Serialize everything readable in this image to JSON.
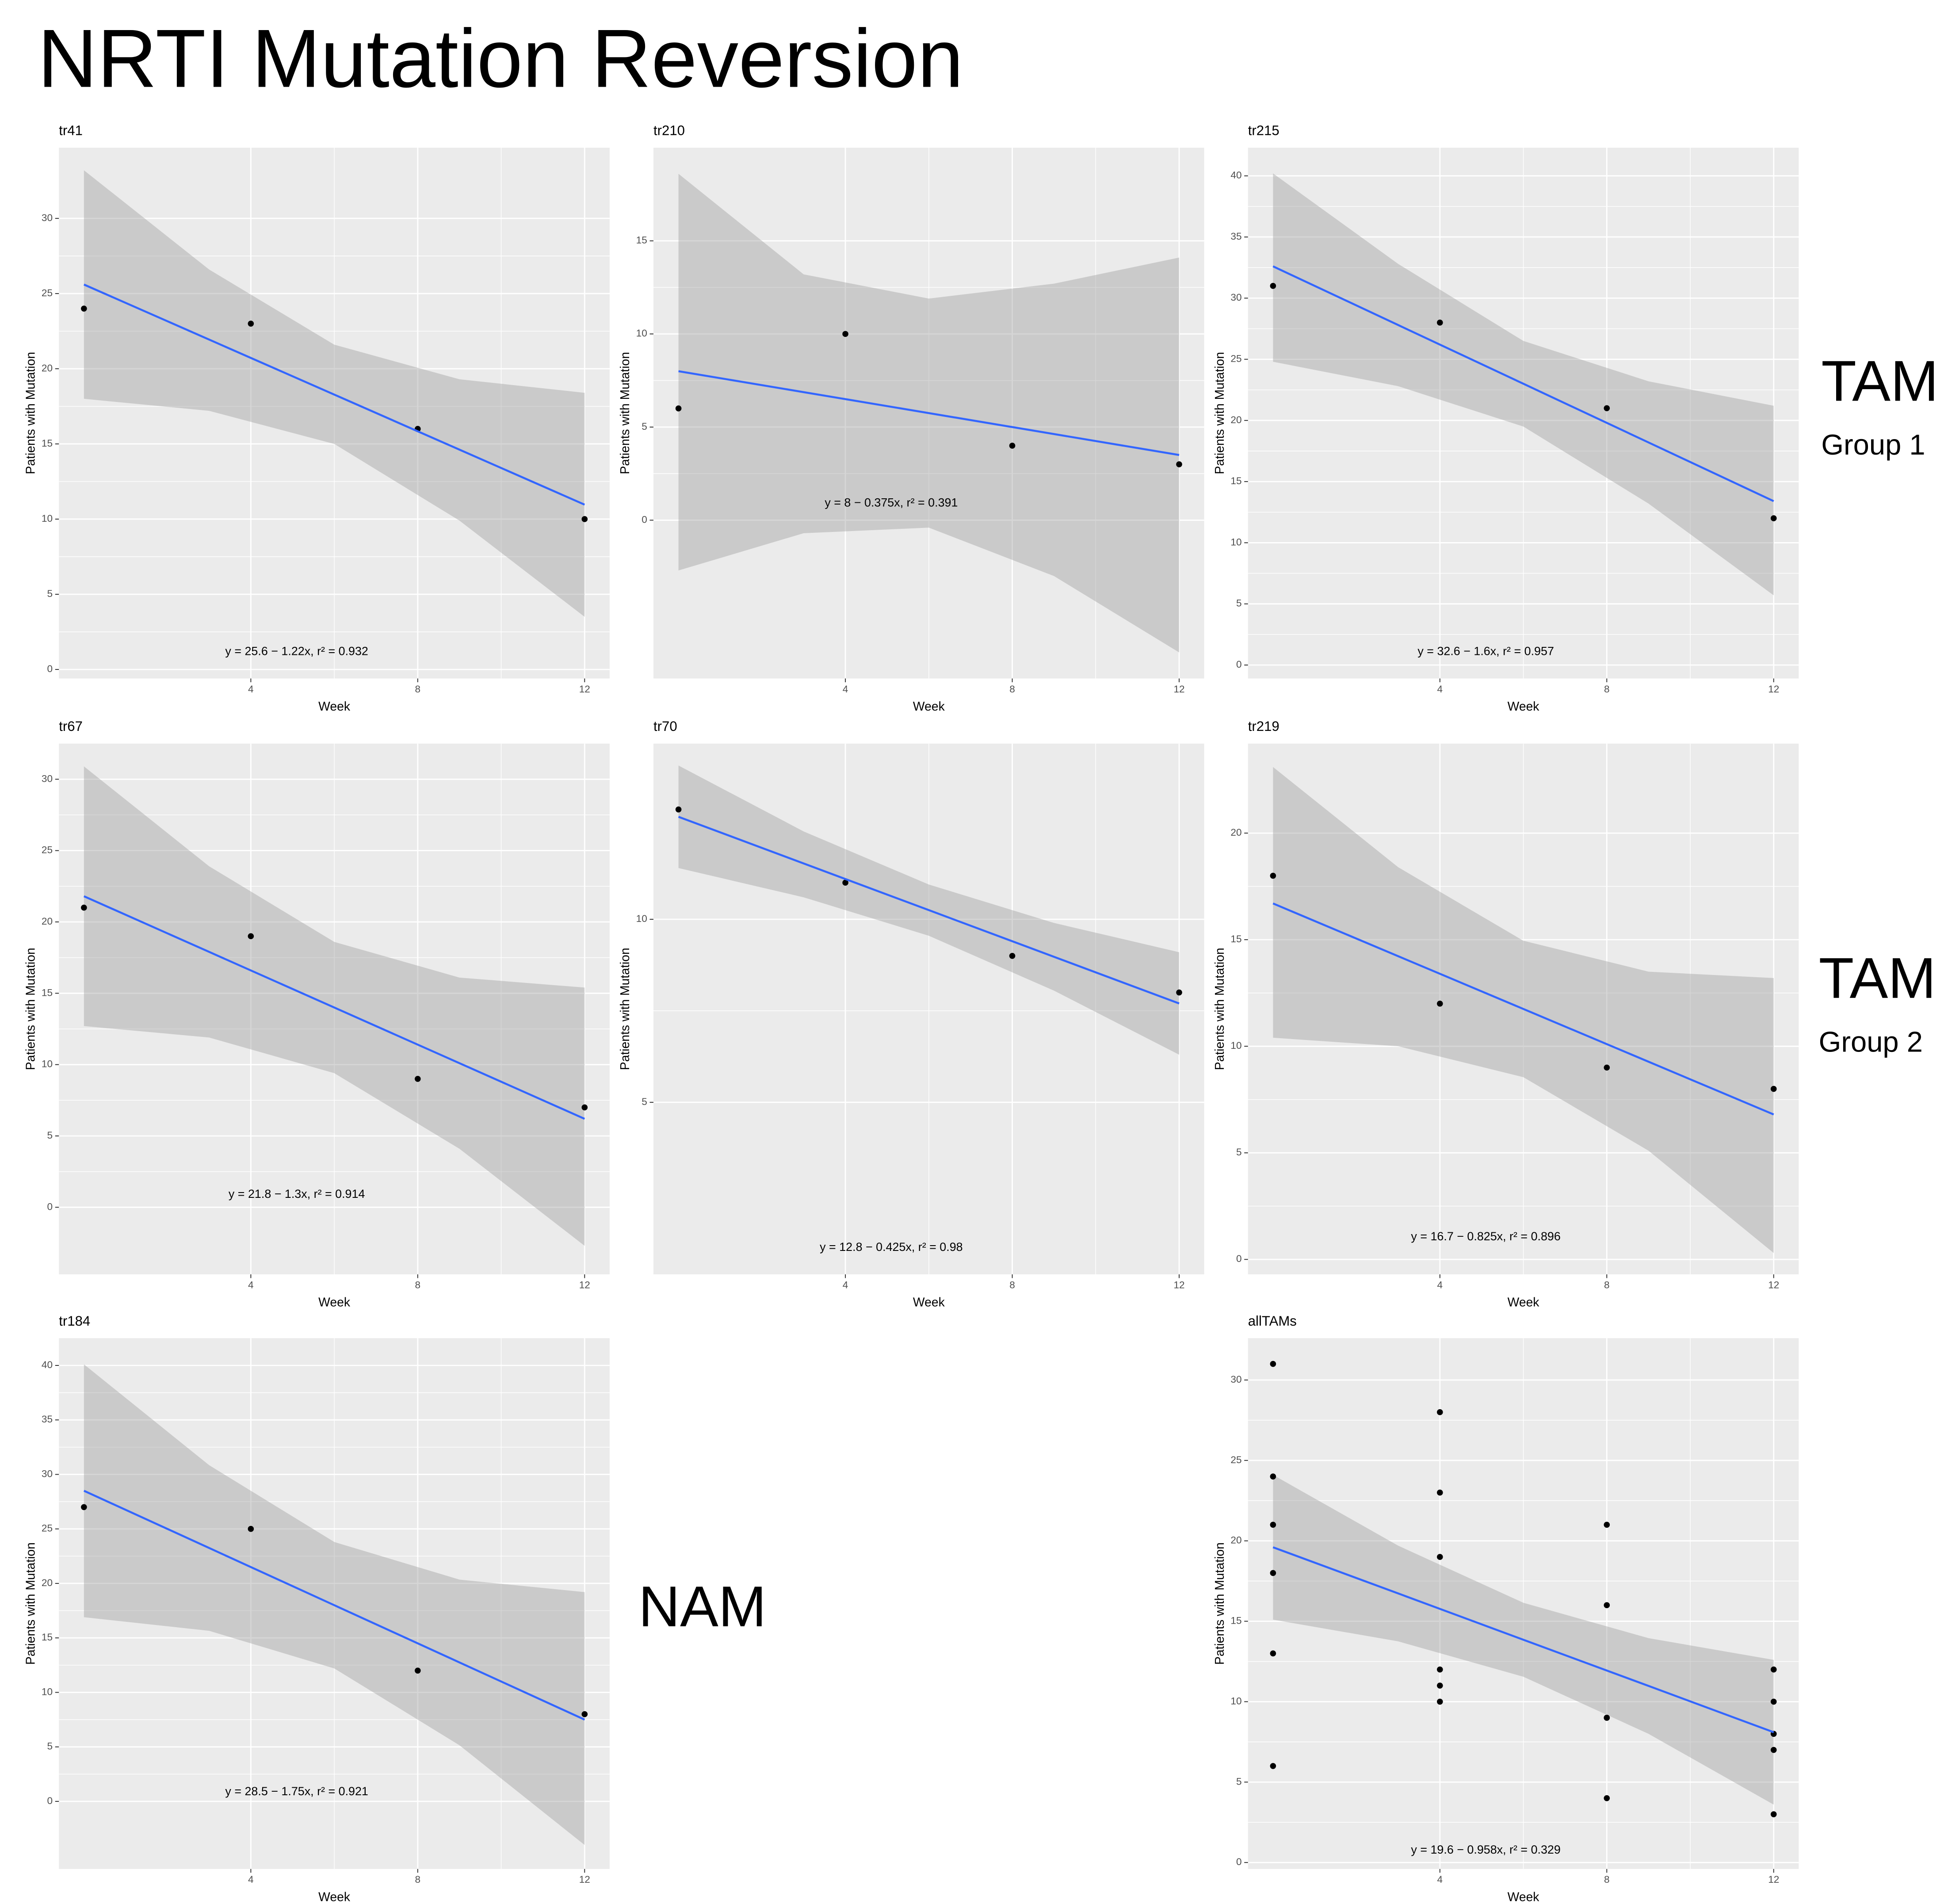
{
  "title": "NRTI Mutation Reversion",
  "group_labels": [
    {
      "title": "TAM",
      "subtitle": "Group 1"
    },
    {
      "title": "TAM",
      "subtitle": "Group 2"
    },
    {
      "title": "NAM"
    }
  ],
  "chart_data": [
    {
      "type": "scatter",
      "title": "tr41",
      "xlabel": "Week",
      "ylabel": "Patients with Mutation",
      "x": [
        0,
        4,
        8,
        12
      ],
      "values": [
        24,
        23,
        16,
        10
      ],
      "point_color": "#000000",
      "xlim": [
        -0.6,
        12.6
      ],
      "ylim": [
        -0.6,
        34.7
      ],
      "xticks": [
        4,
        8,
        12
      ],
      "yticks": [
        0,
        5,
        10,
        15,
        20,
        25,
        30
      ],
      "grid": true,
      "fit": {
        "x": [
          0,
          3,
          6,
          9,
          12
        ],
        "values": [
          25.6,
          21.94,
          18.28,
          14.62,
          10.96
        ],
        "upper": [
          33.2,
          26.6,
          21.6,
          19.3,
          18.4
        ],
        "lower": [
          18.0,
          17.2,
          15.0,
          9.9,
          3.5
        ],
        "color": "#3366ff",
        "band_color": "#999999"
      },
      "annotation": "y = 25.6 − 1.22x,  r² = 0.932"
    },
    {
      "type": "scatter",
      "title": "tr210",
      "xlabel": "Week",
      "ylabel": "Patients with Mutation",
      "x": [
        0,
        4,
        8,
        12
      ],
      "values": [
        6,
        10,
        4,
        3
      ],
      "point_color": "#000000",
      "xlim": [
        -0.6,
        12.6
      ],
      "ylim": [
        -8.5,
        20
      ],
      "xticks": [
        4,
        8,
        12
      ],
      "yticks": [
        0,
        5,
        10,
        15
      ],
      "grid": true,
      "fit": {
        "x": [
          0,
          3,
          6,
          9,
          12
        ],
        "values": [
          8,
          6.875,
          5.75,
          4.625,
          3.5
        ],
        "upper": [
          18.6,
          13.2,
          11.9,
          12.7,
          14.1
        ],
        "lower": [
          -2.7,
          -0.7,
          -0.4,
          -3.0,
          -7.1
        ],
        "color": "#3366ff",
        "band_color": "#999999"
      },
      "annotation": "y = 8 − 0.375x,  r² = 0.391"
    },
    {
      "type": "scatter",
      "title": "tr215",
      "xlabel": "Week",
      "ylabel": "Patients with Mutation",
      "x": [
        0,
        4,
        8,
        12
      ],
      "values": [
        31,
        28,
        21,
        12
      ],
      "point_color": "#000000",
      "xlim": [
        -0.6,
        12.6
      ],
      "ylim": [
        -1.1,
        42.3
      ],
      "xticks": [
        4,
        8,
        12
      ],
      "yticks": [
        0,
        5,
        10,
        15,
        20,
        25,
        30,
        35,
        40
      ],
      "grid": true,
      "fit": {
        "x": [
          0,
          3,
          6,
          9,
          12
        ],
        "values": [
          32.6,
          27.8,
          23.0,
          18.2,
          13.4
        ],
        "upper": [
          40.2,
          32.8,
          26.5,
          23.2,
          21.2
        ],
        "lower": [
          24.8,
          22.8,
          19.5,
          13.2,
          5.7
        ],
        "color": "#3366ff",
        "band_color": "#999999"
      },
      "annotation": "y = 32.6 − 1.6x,  r² = 0.957"
    },
    {
      "type": "scatter",
      "title": "tr67",
      "xlabel": "Week",
      "ylabel": "Patients with Mutation",
      "x": [
        0,
        4,
        8,
        12
      ],
      "values": [
        21,
        19,
        9,
        7
      ],
      "point_color": "#000000",
      "xlim": [
        -0.6,
        12.6
      ],
      "ylim": [
        -4.7,
        32.5
      ],
      "xticks": [
        4,
        8,
        12
      ],
      "yticks": [
        0,
        5,
        10,
        15,
        20,
        25,
        30
      ],
      "grid": true,
      "fit": {
        "x": [
          0,
          3,
          6,
          9,
          12
        ],
        "values": [
          21.8,
          17.9,
          14.0,
          10.1,
          6.2
        ],
        "upper": [
          30.9,
          23.9,
          18.6,
          16.1,
          15.4
        ],
        "lower": [
          12.7,
          11.9,
          9.4,
          4.1,
          -2.7
        ],
        "color": "#3366ff",
        "band_color": "#999999"
      },
      "annotation": "y = 21.8 − 1.3x,  r² = 0.914"
    },
    {
      "type": "scatter",
      "title": "tr70",
      "xlabel": "Week",
      "ylabel": "Patients with Mutation",
      "x": [
        0,
        4,
        8,
        12
      ],
      "values": [
        13,
        11,
        9,
        8
      ],
      "point_color": "#000000",
      "xlim": [
        -0.6,
        12.6
      ],
      "ylim": [
        0.3,
        14.8
      ],
      "xticks": [
        4,
        8,
        12
      ],
      "yticks": [
        5,
        10
      ],
      "grid": true,
      "fit": {
        "x": [
          0,
          3,
          6,
          9,
          12
        ],
        "values": [
          12.8,
          11.525,
          10.25,
          8.975,
          7.7
        ],
        "upper": [
          14.2,
          12.4,
          10.95,
          9.9,
          9.1
        ],
        "lower": [
          11.4,
          10.6,
          9.55,
          8.05,
          6.3
        ],
        "color": "#3366ff",
        "band_color": "#999999"
      },
      "annotation": "y = 12.8 − 0.425x,  r² = 0.98"
    },
    {
      "type": "scatter",
      "title": "tr219",
      "xlabel": "Week",
      "ylabel": "Patients with Mutation",
      "x": [
        0,
        4,
        8,
        12
      ],
      "values": [
        18,
        12,
        9,
        8
      ],
      "point_color": "#000000",
      "xlim": [
        -0.6,
        12.6
      ],
      "ylim": [
        -0.7,
        24.2
      ],
      "xticks": [
        4,
        8,
        12
      ],
      "yticks": [
        0,
        5,
        10,
        15,
        20
      ],
      "grid": true,
      "fit": {
        "x": [
          0,
          3,
          6,
          9,
          12
        ],
        "values": [
          16.7,
          14.225,
          11.75,
          9.275,
          6.8
        ],
        "upper": [
          23.1,
          18.4,
          14.95,
          13.5,
          13.2
        ],
        "lower": [
          10.4,
          10.0,
          8.55,
          5.1,
          0.3
        ],
        "color": "#3366ff",
        "band_color": "#999999"
      },
      "annotation": "y = 16.7 − 0.825x,  r² = 0.896"
    },
    {
      "type": "scatter",
      "title": "tr184",
      "xlabel": "Week",
      "ylabel": "Patients with Mutation",
      "x": [
        0,
        4,
        8,
        12
      ],
      "values": [
        27,
        25,
        12,
        8
      ],
      "point_color": "#000000",
      "xlim": [
        -0.6,
        12.6
      ],
      "ylim": [
        -6.2,
        42.5
      ],
      "xticks": [
        4,
        8,
        12
      ],
      "yticks": [
        0,
        5,
        10,
        15,
        20,
        25,
        30,
        35,
        40
      ],
      "grid": true,
      "fit": {
        "x": [
          0,
          3,
          6,
          9,
          12
        ],
        "values": [
          28.5,
          23.25,
          18.0,
          12.75,
          7.5
        ],
        "upper": [
          40.1,
          30.85,
          23.8,
          20.35,
          19.2
        ],
        "lower": [
          16.9,
          15.65,
          12.2,
          5.15,
          -4.0
        ],
        "color": "#3366ff",
        "band_color": "#999999"
      },
      "annotation": "y = 28.5 − 1.75x,  r² = 0.921"
    },
    {
      "type": "scatter",
      "title": "allTAMs",
      "xlabel": "Week",
      "ylabel": "Patients with Mutation",
      "x": [
        0,
        0,
        0,
        0,
        0,
        0,
        4,
        4,
        4,
        4,
        4,
        4,
        8,
        8,
        8,
        8,
        8,
        8,
        12,
        12,
        12,
        12,
        12,
        12
      ],
      "values": [
        24,
        21,
        13,
        6,
        31,
        18,
        23,
        19,
        11,
        10,
        28,
        12,
        16,
        9,
        9,
        4,
        21,
        9,
        10,
        7,
        8,
        3,
        12,
        8
      ],
      "point_color": "#000000",
      "xlim": [
        -0.6,
        12.6
      ],
      "ylim": [
        -0.4,
        32.6
      ],
      "xticks": [
        4,
        8,
        12
      ],
      "yticks": [
        0,
        5,
        10,
        15,
        20,
        25,
        30
      ],
      "grid": true,
      "fit": {
        "x": [
          0,
          3,
          6,
          9,
          12
        ],
        "values": [
          19.6,
          16.73,
          13.85,
          10.98,
          8.1
        ],
        "upper": [
          24.1,
          19.7,
          16.15,
          13.95,
          12.6
        ],
        "lower": [
          15.1,
          13.75,
          11.55,
          8.0,
          3.6
        ],
        "color": "#3366ff",
        "band_color": "#999999"
      },
      "annotation": "y = 19.6 − 0.958x,  r² = 0.329"
    }
  ]
}
